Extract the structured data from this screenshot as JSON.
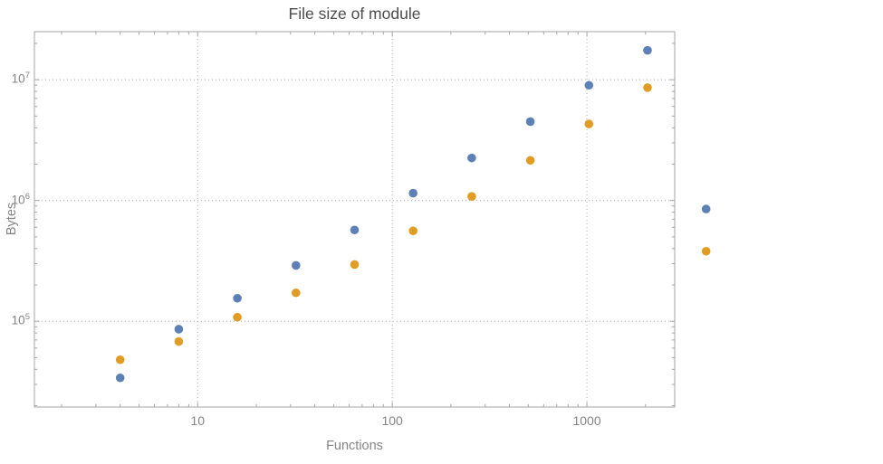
{
  "chart_data": {
    "type": "scatter",
    "title": "File size of module",
    "xlabel": "Functions",
    "ylabel": "Bytes",
    "x_scale": "log",
    "y_scale": "log",
    "grid": true,
    "legend": "none",
    "x": [
      4,
      8,
      16,
      32,
      64,
      128,
      256,
      512,
      1024,
      2048,
      4096
    ],
    "series": [
      {
        "name": "series-1-blue",
        "color": "#5e81b5",
        "values": [
          34000,
          86000,
          155000,
          290000,
          570000,
          1150000,
          2250000,
          4500000,
          9000000,
          17500000,
          850000
        ]
      },
      {
        "name": "series-2-orange",
        "color": "#e19c24",
        "values": [
          48000,
          68000,
          108000,
          172000,
          295000,
          560000,
          1080000,
          2150000,
          4300000,
          8600000,
          380000
        ]
      }
    ],
    "xlim": [
      1.45,
      2825
    ],
    "ylim": [
      19500,
      25000000
    ],
    "x_ticks": [
      {
        "value": 10,
        "label": "10"
      },
      {
        "value": 100,
        "label": "100"
      },
      {
        "value": 1000,
        "label": "1000"
      }
    ],
    "y_ticks": [
      {
        "value": 100000,
        "label": "10",
        "exponent": "5"
      },
      {
        "value": 1000000,
        "label": "10",
        "exponent": "6"
      },
      {
        "value": 10000000,
        "label": "10",
        "exponent": "7"
      }
    ]
  },
  "colors": {
    "frame": "#a6a6a6",
    "grid": "#b0b0b0",
    "tick_label": "#848484",
    "title": "#4c4c4c",
    "axis_label": "#848484",
    "background": "#ffffff"
  }
}
